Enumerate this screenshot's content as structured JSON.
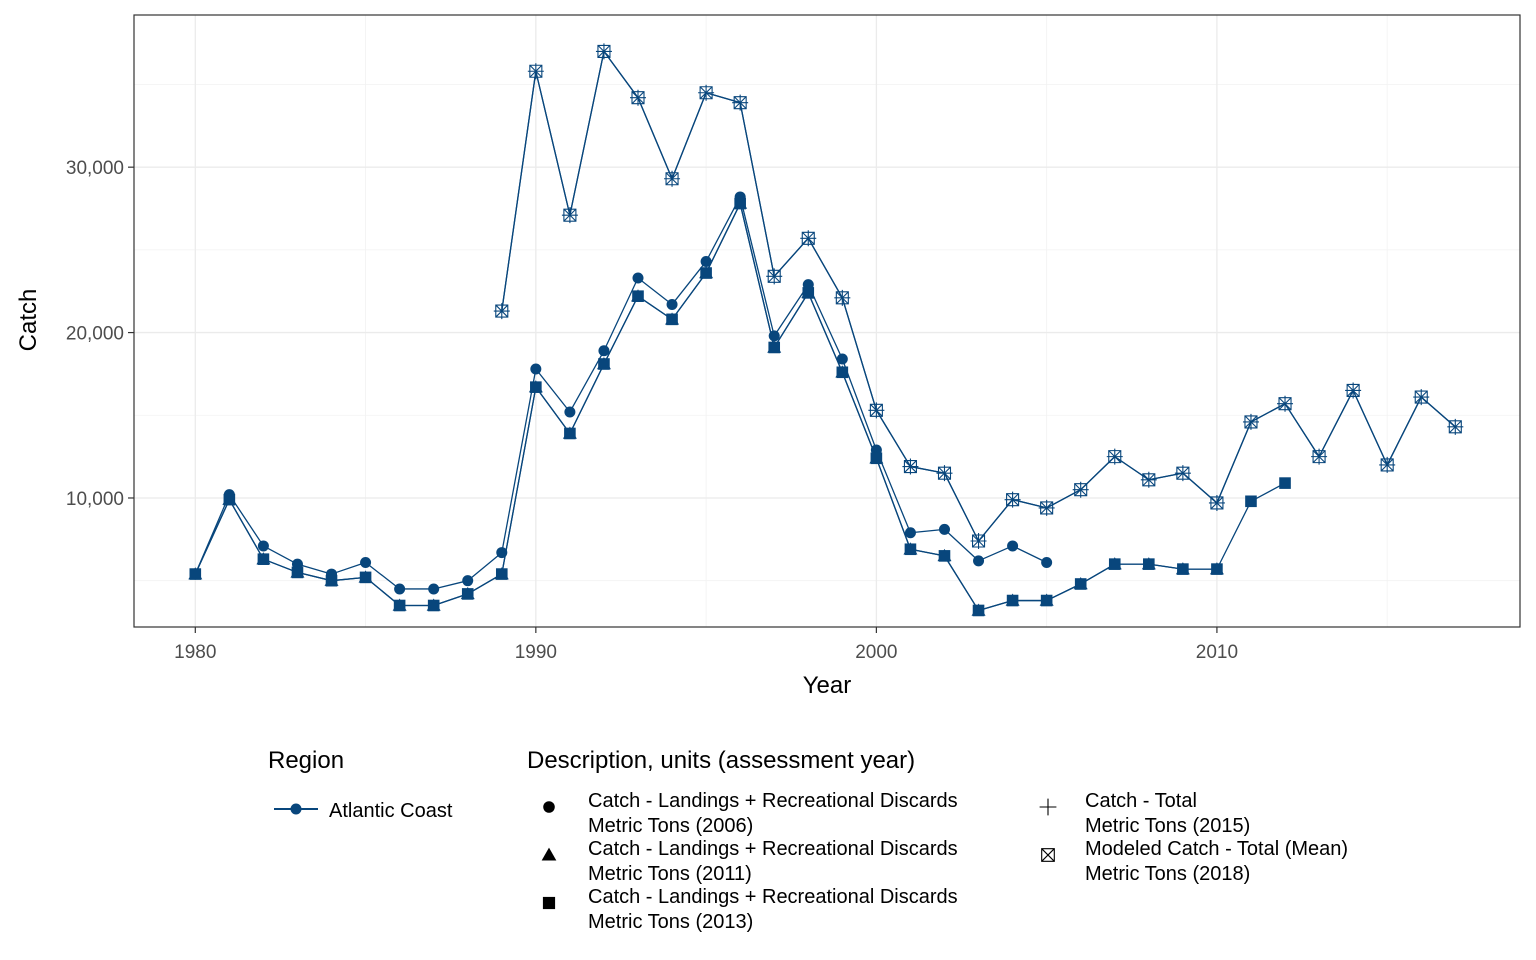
{
  "chart_data": {
    "type": "line",
    "title": "",
    "xlabel": "Year",
    "ylabel": "Catch",
    "xlim": [
      1978.2,
      2018.9
    ],
    "ylim": [
      2200,
      39200
    ],
    "x_ticks": [
      1980,
      1990,
      2000,
      2010
    ],
    "x_tick_labels": [
      "1980",
      "1990",
      "2000",
      "2010"
    ],
    "y_ticks": [
      10000,
      20000,
      30000
    ],
    "y_tick_labels": [
      "10,000",
      "20,000",
      "30,000"
    ],
    "grid": true,
    "line_color": "#08467c",
    "series": [
      {
        "key": "catch_2006",
        "shape": "circle",
        "x": [
          1980,
          1981,
          1982,
          1983,
          1984,
          1985,
          1986,
          1987,
          1988,
          1989,
          1990,
          1991,
          1992,
          1993,
          1994,
          1995,
          1996,
          1997,
          1998,
          1999,
          2000,
          2001,
          2002,
          2003,
          2004,
          2005
        ],
        "values": [
          5400,
          10200,
          7100,
          6000,
          5400,
          6100,
          4500,
          4500,
          5000,
          6700,
          17800,
          15200,
          18900,
          23300,
          21700,
          24300,
          28200,
          19800,
          22900,
          18400,
          12900,
          7900,
          8100,
          6200,
          7100,
          6100
        ]
      },
      {
        "key": "catch_2011",
        "shape": "triangle",
        "x": [
          1980,
          1981,
          1982,
          1983,
          1984,
          1985,
          1986,
          1987,
          1988,
          1989,
          1990,
          1991,
          1992,
          1993,
          1994,
          1995,
          1996,
          1997,
          1998,
          1999,
          2000,
          2001,
          2002,
          2003,
          2004,
          2005,
          2006,
          2007,
          2008,
          2009,
          2010
        ],
        "values": [
          5400,
          9900,
          6300,
          5500,
          5000,
          5200,
          3500,
          3500,
          4200,
          5400,
          16700,
          13900,
          18100,
          22200,
          20800,
          23600,
          27800,
          19100,
          22400,
          17600,
          12400,
          6900,
          6500,
          3200,
          3800,
          3800,
          4800,
          6000,
          6000,
          5700,
          5700
        ]
      },
      {
        "key": "catch_2013",
        "shape": "square",
        "x": [
          1980,
          1981,
          1982,
          1983,
          1984,
          1985,
          1986,
          1987,
          1988,
          1989,
          1990,
          1991,
          1992,
          1993,
          1994,
          1995,
          1996,
          1997,
          1998,
          1999,
          2000,
          2001,
          2002,
          2003,
          2004,
          2005,
          2006,
          2007,
          2008,
          2009,
          2010,
          2011,
          2012
        ],
        "values": [
          5400,
          9900,
          6300,
          5500,
          5000,
          5200,
          3500,
          3500,
          4200,
          5400,
          16700,
          13900,
          18100,
          22200,
          20800,
          23600,
          27800,
          19100,
          22400,
          17600,
          12400,
          6900,
          6500,
          3200,
          3800,
          3800,
          4800,
          6000,
          6000,
          5700,
          5700,
          9800,
          10900
        ]
      },
      {
        "key": "catch_2015",
        "shape": "plus",
        "x": [
          1989,
          1990,
          1991,
          1992,
          1993,
          1994,
          1995,
          1996,
          1997,
          1998,
          1999,
          2000,
          2001,
          2002,
          2003,
          2004,
          2005,
          2006,
          2007,
          2008,
          2009,
          2010,
          2011,
          2012,
          2013,
          2014,
          2015,
          2016,
          2017
        ],
        "values": [
          21300,
          35800,
          27100,
          37000,
          34200,
          29300,
          34500,
          33900,
          23400,
          25700,
          22100,
          15300,
          11900,
          11500,
          7400,
          9900,
          9400,
          10500,
          12500,
          11100,
          11500,
          9700,
          14600,
          15700,
          12500,
          16500,
          12000,
          16100,
          14300
        ]
      },
      {
        "key": "catch_2018",
        "shape": "boxcross",
        "x": [
          1989,
          1990,
          1991,
          1992,
          1993,
          1994,
          1995,
          1996,
          1997,
          1998,
          1999,
          2000,
          2001,
          2002,
          2003,
          2004,
          2005,
          2006,
          2007,
          2008,
          2009,
          2010,
          2011,
          2012,
          2013,
          2014,
          2015,
          2016,
          2017
        ],
        "values": [
          21300,
          35800,
          27100,
          37000,
          34200,
          29300,
          34500,
          33900,
          23400,
          25700,
          22100,
          15300,
          11900,
          11500,
          7400,
          9900,
          9400,
          10500,
          12500,
          11100,
          11500,
          9700,
          14600,
          15700,
          12500,
          16500,
          12000,
          16100,
          14300
        ]
      }
    ]
  },
  "legend": {
    "region_title": "Region",
    "region_entries": [
      {
        "label": "Atlantic Coast"
      }
    ],
    "desc_title": "Description, units (assessment year)",
    "desc_entries": [
      {
        "shape": "circle",
        "line1": "Catch - Landings + Recreational Discards",
        "line2": "Metric Tons (2006)"
      },
      {
        "shape": "triangle",
        "line1": "Catch - Landings + Recreational Discards",
        "line2": "Metric Tons (2011)"
      },
      {
        "shape": "square",
        "line1": "Catch - Landings + Recreational Discards",
        "line2": "Metric Tons (2013)"
      },
      {
        "shape": "plus",
        "line1": "Catch - Total",
        "line2": "Metric Tons (2015)"
      },
      {
        "shape": "boxcross",
        "line1": "Modeled Catch - Total (Mean)",
        "line2": "Metric Tons (2018)"
      }
    ]
  }
}
